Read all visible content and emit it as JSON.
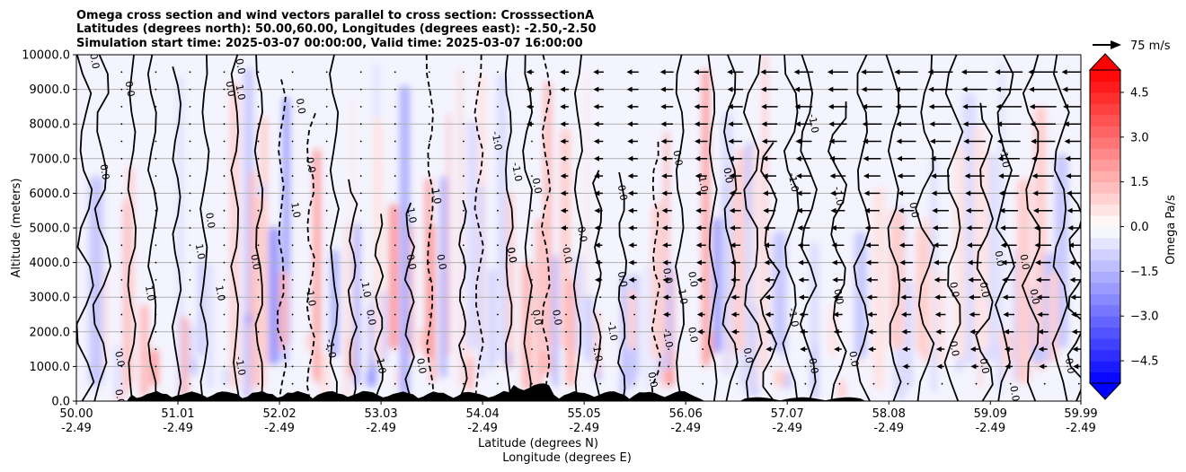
{
  "chart_data": {
    "type": "contour",
    "title_lines": [
      "Omega cross section and wind vectors parallel to cross section: CrosssectionA",
      "Latitudes (degrees north): 50.00,60.00, Longitudes (degrees east): -2.50,-2.50",
      "Simulation start time: 2025-03-07 00:00:00, Valid time: 2025-03-07 16:00:00"
    ],
    "ylabel": "Altitude (meters)",
    "xlabel_lines": [
      "Latitude (degrees N)",
      "Longitude (degrees E)"
    ],
    "xlim": [
      50.0,
      59.99
    ],
    "ylim": [
      0,
      10000
    ],
    "x_ticks": [
      50.0,
      51.01,
      52.02,
      53.03,
      54.04,
      55.05,
      56.06,
      57.07,
      58.08,
      59.09,
      59.99
    ],
    "x_tick_labels": [
      {
        "lat": "50.00",
        "lon": "-2.49"
      },
      {
        "lat": "51.01",
        "lon": "-2.49"
      },
      {
        "lat": "52.02",
        "lon": "-2.49"
      },
      {
        "lat": "53.03",
        "lon": "-2.49"
      },
      {
        "lat": "54.04",
        "lon": "-2.49"
      },
      {
        "lat": "55.05",
        "lon": "-2.49"
      },
      {
        "lat": "56.06",
        "lon": "-2.49"
      },
      {
        "lat": "57.07",
        "lon": "-2.49"
      },
      {
        "lat": "58.08",
        "lon": "-2.49"
      },
      {
        "lat": "59.09",
        "lon": "-2.49"
      },
      {
        "lat": "59.99",
        "lon": "-2.49"
      }
    ],
    "y_ticks": [
      0,
      1000,
      2000,
      3000,
      4000,
      5000,
      6000,
      7000,
      8000,
      9000,
      10000
    ],
    "y_tick_labels": [
      "0.0",
      "1000.0",
      "2000.0",
      "3000.0",
      "4000.0",
      "5000.0",
      "6000.0",
      "7000.0",
      "8000.0",
      "9000.0",
      "10000.0"
    ],
    "grid": "horizontal",
    "colorbar": {
      "label": "Omega Pa/s",
      "min": -5.25,
      "max": 5.25,
      "step": 0.375,
      "ticks": [
        -4.5,
        -3.0,
        -1.5,
        0.0,
        1.5,
        3.0,
        4.5
      ],
      "tick_labels": [
        "−4.5",
        "−3.0",
        "−1.5",
        "0.0",
        "1.5",
        "3.0",
        "4.5"
      ],
      "cmap": "bwr",
      "extend": "both"
    },
    "quiver_key": {
      "label": "75 m/s",
      "value": 75
    },
    "contour_labels": [
      {
        "x": 50.15,
        "y": 9800,
        "text": "0.0"
      },
      {
        "x": 50.5,
        "y": 9000,
        "text": "0.0"
      },
      {
        "x": 51.5,
        "y": 9000,
        "text": "0.0"
      },
      {
        "x": 51.6,
        "y": 9650,
        "text": "0.0"
      },
      {
        "x": 51.6,
        "y": 8900,
        "text": "1.0"
      },
      {
        "x": 52.2,
        "y": 8500,
        "text": "0.0"
      },
      {
        "x": 52.3,
        "y": 6800,
        "text": "0.0"
      },
      {
        "x": 53.3,
        "y": 5400,
        "text": "-1.0"
      },
      {
        "x": 50.25,
        "y": 6600,
        "text": "0.0"
      },
      {
        "x": 51.3,
        "y": 5200,
        "text": "0.0"
      },
      {
        "x": 52.15,
        "y": 5500,
        "text": "1.0"
      },
      {
        "x": 53.55,
        "y": 5900,
        "text": "1.0"
      },
      {
        "x": 54.15,
        "y": 7500,
        "text": "-1.0"
      },
      {
        "x": 54.35,
        "y": 6600,
        "text": "-1.0"
      },
      {
        "x": 54.55,
        "y": 6200,
        "text": "0.0"
      },
      {
        "x": 55.4,
        "y": 6000,
        "text": "0.0"
      },
      {
        "x": 55.95,
        "y": 7000,
        "text": "0.0"
      },
      {
        "x": 56.2,
        "y": 6300,
        "text": "-1.0"
      },
      {
        "x": 56.45,
        "y": 6500,
        "text": "0.0"
      },
      {
        "x": 57.1,
        "y": 6300,
        "text": "-1.0"
      },
      {
        "x": 57.55,
        "y": 5900,
        "text": "-1.0"
      },
      {
        "x": 57.3,
        "y": 8000,
        "text": "-1.0"
      },
      {
        "x": 58.3,
        "y": 5500,
        "text": "0.0"
      },
      {
        "x": 59.2,
        "y": 7000,
        "text": "-1.0"
      },
      {
        "x": 55.0,
        "y": 4800,
        "text": "0.0"
      },
      {
        "x": 53.3,
        "y": 4000,
        "text": "0.0"
      },
      {
        "x": 53.6,
        "y": 4000,
        "text": "0.0"
      },
      {
        "x": 54.3,
        "y": 4200,
        "text": "0.0"
      },
      {
        "x": 54.85,
        "y": 4200,
        "text": "0.0"
      },
      {
        "x": 54.3,
        "y": 4200,
        "text": "0.0"
      },
      {
        "x": 55.4,
        "y": 3500,
        "text": "0.0"
      },
      {
        "x": 55.85,
        "y": 3600,
        "text": "0.0"
      },
      {
        "x": 56.1,
        "y": 3500,
        "text": "0.0"
      },
      {
        "x": 56.0,
        "y": 3000,
        "text": "1.0"
      },
      {
        "x": 52.85,
        "y": 3200,
        "text": "1.0"
      },
      {
        "x": 52.3,
        "y": 3000,
        "text": "-1.0"
      },
      {
        "x": 51.4,
        "y": 3100,
        "text": "1.0"
      },
      {
        "x": 50.7,
        "y": 3100,
        "text": "1.0"
      },
      {
        "x": 51.75,
        "y": 4000,
        "text": "0.0"
      },
      {
        "x": 51.2,
        "y": 4300,
        "text": "1.0"
      },
      {
        "x": 52.9,
        "y": 2400,
        "text": "0.0"
      },
      {
        "x": 52.5,
        "y": 1500,
        "text": "-1.0"
      },
      {
        "x": 53.0,
        "y": 1000,
        "text": "1.0"
      },
      {
        "x": 53.4,
        "y": 1000,
        "text": "0.0"
      },
      {
        "x": 54.55,
        "y": 2400,
        "text": "0.0"
      },
      {
        "x": 54.75,
        "y": 2400,
        "text": "0.0"
      },
      {
        "x": 55.3,
        "y": 2000,
        "text": "-1.0"
      },
      {
        "x": 55.15,
        "y": 1400,
        "text": "-1.0"
      },
      {
        "x": 55.85,
        "y": 1800,
        "text": "-1.0"
      },
      {
        "x": 55.7,
        "y": 600,
        "text": "0.0"
      },
      {
        "x": 56.1,
        "y": 1900,
        "text": "0.0"
      },
      {
        "x": 56.65,
        "y": 1300,
        "text": "0.0"
      },
      {
        "x": 57.1,
        "y": 2400,
        "text": "-1.0"
      },
      {
        "x": 57.3,
        "y": 1000,
        "text": "0.0"
      },
      {
        "x": 57.55,
        "y": 3000,
        "text": "0.0"
      },
      {
        "x": 58.7,
        "y": 1500,
        "text": "0.0"
      },
      {
        "x": 58.7,
        "y": 3200,
        "text": "0.0"
      },
      {
        "x": 59.0,
        "y": 3200,
        "text": "0.0"
      },
      {
        "x": 59.15,
        "y": 4100,
        "text": "0.0"
      },
      {
        "x": 59.4,
        "y": 4000,
        "text": "0.0"
      },
      {
        "x": 59.5,
        "y": 3000,
        "text": "0.0"
      },
      {
        "x": 59.0,
        "y": 1000,
        "text": "0.0"
      },
      {
        "x": 59.3,
        "y": 200,
        "text": "0.0"
      },
      {
        "x": 59.85,
        "y": 1000,
        "text": "0.0"
      },
      {
        "x": 57.7,
        "y": 1200,
        "text": "0.0"
      },
      {
        "x": 50.4,
        "y": 1200,
        "text": "0.0"
      },
      {
        "x": 50.4,
        "y": 100,
        "text": "0.0"
      },
      {
        "x": 51.6,
        "y": 1000,
        "text": "-1.0"
      }
    ]
  }
}
